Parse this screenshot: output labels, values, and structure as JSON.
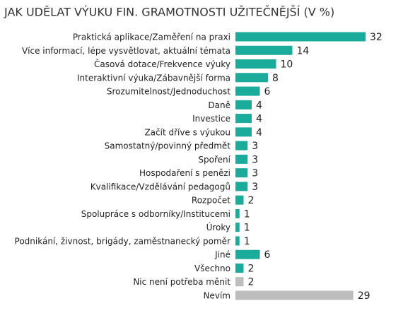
{
  "chart_data": {
    "type": "bar",
    "orientation": "horizontal",
    "title": "JAK UDĚLAT VÝUKU FIN. GRAMOTNOSTI UŽITEČNĚJŠÍ (V %)",
    "categories": [
      "Praktická aplikace/Zaměření na praxi",
      "Více informací, lépe vysvětlovat, aktuální témata",
      "Časová dotace/Frekvence výuky",
      "Interaktivní výuka/Zábavnější forma",
      "Srozumitelnost/Jednoduchost",
      "Daně",
      "Investice",
      "Začít dříve s výukou",
      "Samostatný/povinný předmět",
      "Spoření",
      "Hospodaření s penězi",
      "Kvalifikace/Vzdělávání pedagogů",
      "Rozpočet",
      "Spolupráce s odborníky/Institucemi",
      "Úroky",
      "Podnikání, živnost, brigády, zaměstnanecký poměr",
      "Jiné",
      "Všechno",
      "Nic není potřeba měnit",
      "Nevím"
    ],
    "values": [
      32,
      14,
      10,
      8,
      6,
      4,
      4,
      4,
      3,
      3,
      3,
      3,
      2,
      1,
      1,
      1,
      6,
      2,
      2,
      29
    ],
    "colors": [
      "#1aab9b",
      "#1aab9b",
      "#1aab9b",
      "#1aab9b",
      "#1aab9b",
      "#1aab9b",
      "#1aab9b",
      "#1aab9b",
      "#1aab9b",
      "#1aab9b",
      "#1aab9b",
      "#1aab9b",
      "#1aab9b",
      "#1aab9b",
      "#1aab9b",
      "#1aab9b",
      "#1aab9b",
      "#1aab9b",
      "#bdbdbd",
      "#bdbdbd"
    ]
  }
}
